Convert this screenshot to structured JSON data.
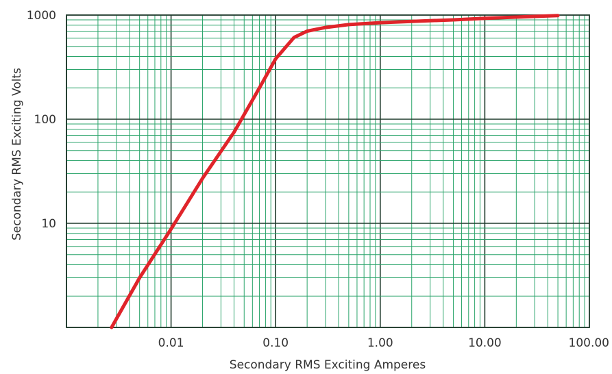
{
  "chart_data": {
    "type": "line",
    "title": "",
    "xlabel": "Secondary RMS Exciting Amperes",
    "ylabel": "Secondary RMS Exciting Volts",
    "x_scale": "log",
    "y_scale": "log",
    "xlim": [
      0.001,
      100
    ],
    "ylim": [
      1,
      1000
    ],
    "grid": true,
    "legend": "none",
    "x_ticks": [
      {
        "value": 0.01,
        "label": "0.01"
      },
      {
        "value": 0.1,
        "label": "0.10"
      },
      {
        "value": 1,
        "label": "1.00"
      },
      {
        "value": 10,
        "label": "10.00"
      },
      {
        "value": 100,
        "label": "100.00"
      }
    ],
    "y_ticks": [
      {
        "value": 10,
        "label": "10"
      },
      {
        "value": 100,
        "label": "100"
      },
      {
        "value": 1000,
        "label": "1000"
      }
    ],
    "series": [
      {
        "x": [
          0.0027,
          0.005,
          0.01,
          0.02,
          0.04,
          0.07,
          0.1,
          0.15,
          0.2,
          0.3,
          0.5,
          1,
          2,
          5,
          10,
          20,
          50
        ],
        "y": [
          1,
          3,
          8.8,
          27,
          75,
          200,
          380,
          610,
          700,
          760,
          810,
          845,
          870,
          900,
          930,
          955,
          990
        ]
      }
    ],
    "colors": {
      "curve": "#e0242a",
      "minor_grid": "#2aa46a",
      "major_grid": "#1f3a2c",
      "frame": "#1f3a2c"
    }
  }
}
